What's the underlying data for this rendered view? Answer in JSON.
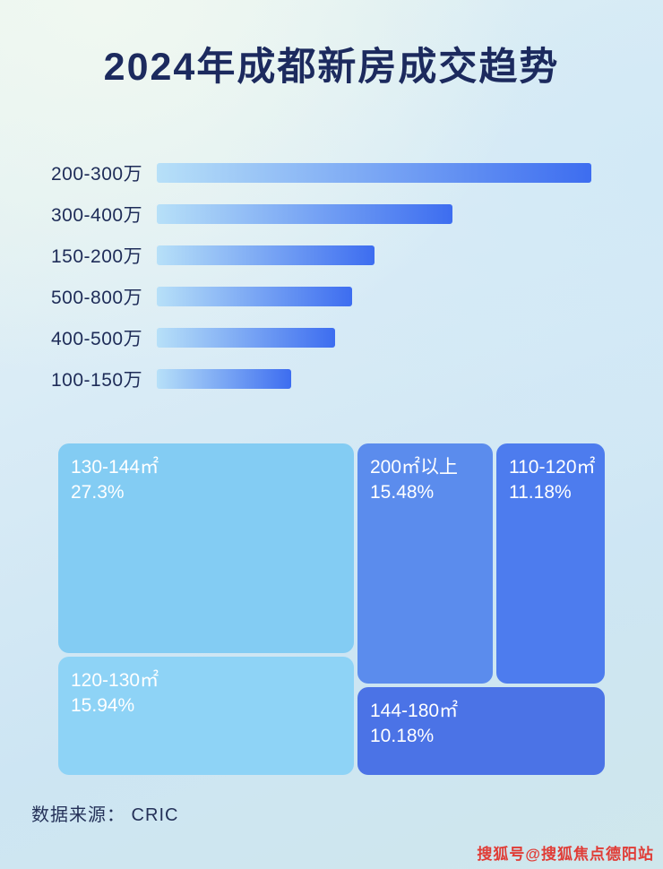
{
  "poster": {
    "title": "2024年成都新房成交趋势",
    "source_label": "数据来源： CRIC",
    "watermark": "搜狐号@搜狐焦点德阳站"
  },
  "colors": {
    "title_text": "#1c2a5e",
    "source_text": "#243158",
    "watermark_text": "#e03c36",
    "background_top": "#e8f4ef",
    "background_bottom": "#cfe7ec"
  },
  "chart_data": [
    {
      "type": "bar",
      "orientation": "horizontal",
      "title": "2024年成都新房成交趋势",
      "categories": [
        "200-300万",
        "300-400万",
        "150-200万",
        "500-800万",
        "400-500万",
        "100-150万"
      ],
      "values": [
        100,
        68,
        50,
        45,
        41,
        31
      ],
      "values_note": "relative bar lengths as % of longest bar; no numeric axis labels shown in image",
      "bar_gradient": [
        "#b7e0f8",
        "#3d6df0"
      ],
      "legend": "none",
      "grid": "off"
    },
    {
      "type": "treemap",
      "items": [
        {
          "label": "130-144㎡",
          "value": "27.3%",
          "color": "#83ccf3"
        },
        {
          "label": "120-130㎡",
          "value": "15.94%",
          "color": "#8ed3f6"
        },
        {
          "label": "200㎡以上",
          "value": "15.48%",
          "color": "#5b8ced"
        },
        {
          "label": "110-120㎡",
          "value": "11.18%",
          "color": "#4d7cee"
        },
        {
          "label": "144-180㎡",
          "value": "10.18%",
          "color": "#4b73e6"
        }
      ]
    }
  ]
}
